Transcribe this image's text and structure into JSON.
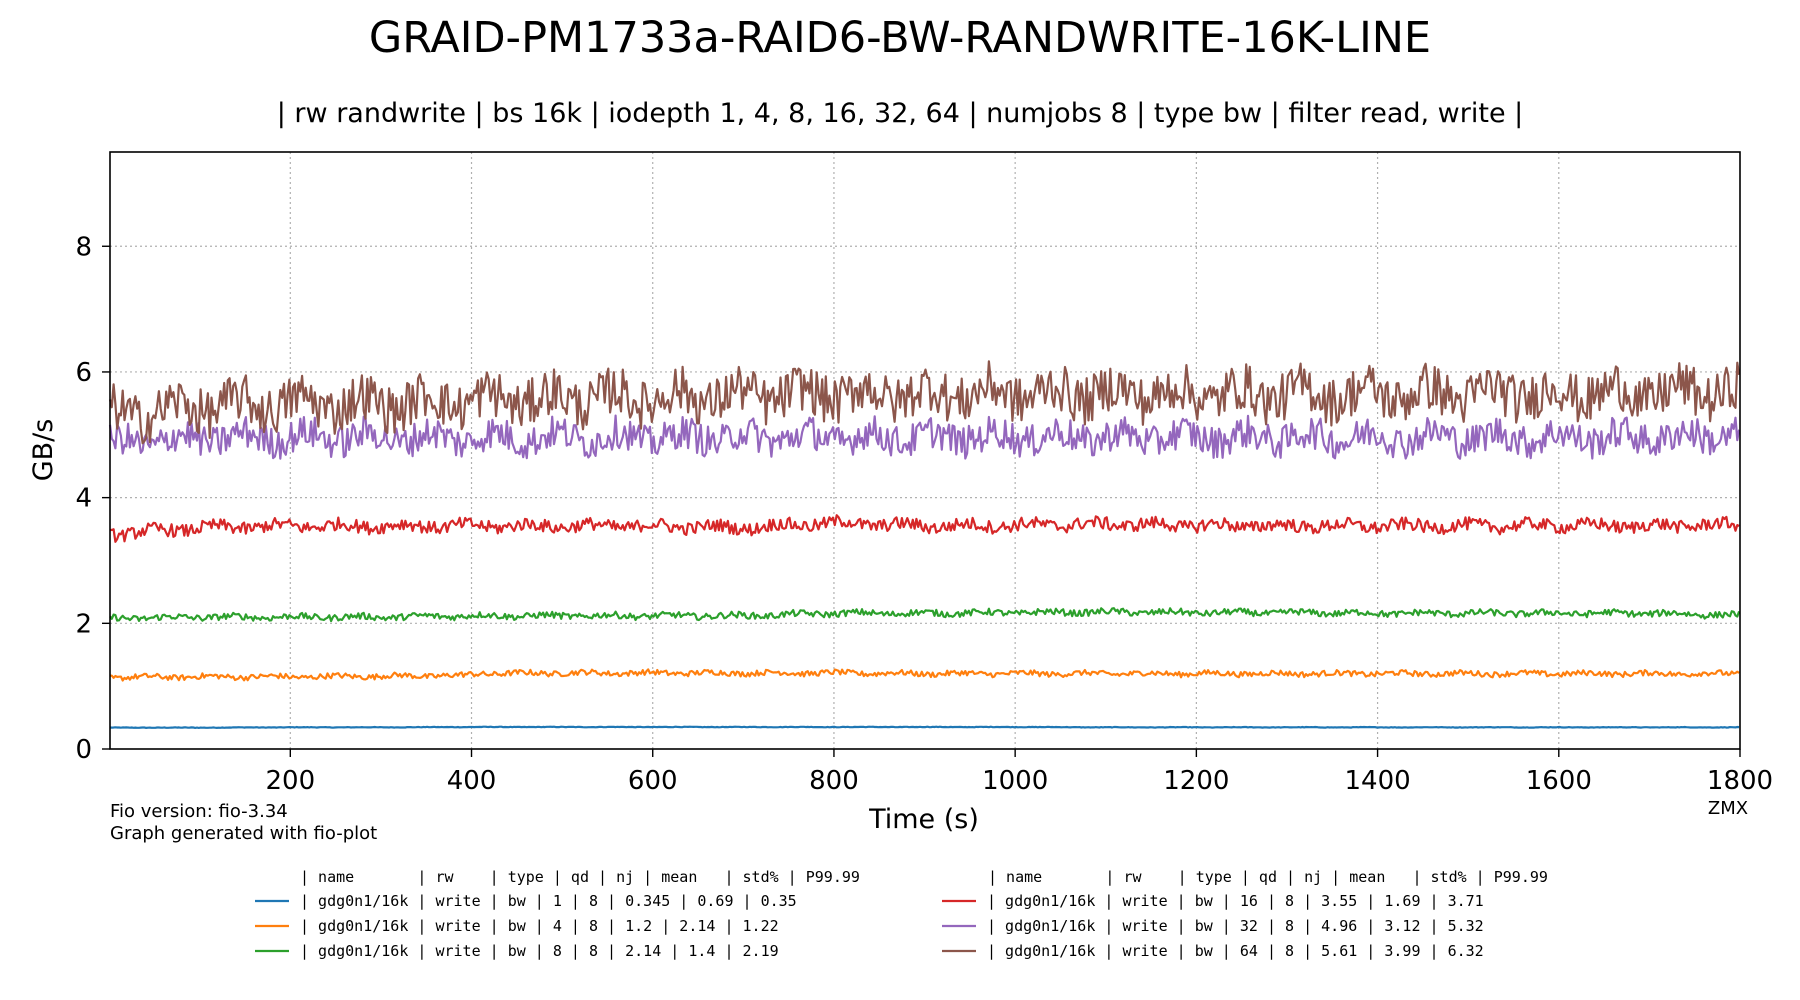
{
  "chart_data": {
    "type": "line",
    "title": "GRAID-PM1733a-RAID6-BW-RANDWRITE-16K-LINE",
    "subtitle": "| rw randwrite | bs 16k | iodepth 1, 4, 8, 16, 32, 64 | numjobs 8 | type bw | filter read, write |",
    "xlabel": "Time (s)",
    "ylabel": "GB/s",
    "xlim": [
      1,
      1800
    ],
    "ylim": [
      0,
      9.5
    ],
    "x_ticks": [
      200,
      400,
      600,
      800,
      1000,
      1200,
      1400,
      1600,
      1800
    ],
    "y_ticks": [
      0,
      2,
      4,
      6,
      8
    ],
    "grid": true,
    "legend_placement": "bottom",
    "legend_header": "| name       | rw    | type | qd | nj | mean   | std% | P99.99",
    "series": [
      {
        "qd": 1,
        "color": "#1f77b4",
        "mean": 0.345,
        "std_pct": 0.69,
        "p9999": 0.35,
        "points": [
          [
            1,
            0.34
          ],
          [
            100,
            0.34
          ],
          [
            200,
            0.345
          ],
          [
            300,
            0.345
          ],
          [
            400,
            0.35
          ],
          [
            500,
            0.35
          ],
          [
            600,
            0.35
          ],
          [
            700,
            0.35
          ],
          [
            800,
            0.35
          ],
          [
            900,
            0.35
          ],
          [
            1000,
            0.35
          ],
          [
            1100,
            0.345
          ],
          [
            1200,
            0.345
          ],
          [
            1300,
            0.345
          ],
          [
            1400,
            0.345
          ],
          [
            1500,
            0.345
          ],
          [
            1600,
            0.345
          ],
          [
            1700,
            0.345
          ],
          [
            1800,
            0.345
          ]
        ],
        "legend_row": "| gdg0n1/16k | write |   bw |  1 |  8 |  0.345 | 0.69 | 0.35"
      },
      {
        "qd": 4,
        "color": "#ff7f0e",
        "mean": 1.2,
        "std_pct": 2.14,
        "p9999": 1.22,
        "points": [
          [
            1,
            1.14
          ],
          [
            100,
            1.15
          ],
          [
            200,
            1.15
          ],
          [
            300,
            1.16
          ],
          [
            390,
            1.17
          ],
          [
            410,
            1.2
          ],
          [
            500,
            1.21
          ],
          [
            600,
            1.21
          ],
          [
            700,
            1.21
          ],
          [
            800,
            1.21
          ],
          [
            900,
            1.2
          ],
          [
            1000,
            1.2
          ],
          [
            1100,
            1.2
          ],
          [
            1200,
            1.2
          ],
          [
            1300,
            1.2
          ],
          [
            1400,
            1.2
          ],
          [
            1500,
            1.2
          ],
          [
            1600,
            1.2
          ],
          [
            1700,
            1.2
          ],
          [
            1800,
            1.2
          ]
        ],
        "legend_row": "| gdg0n1/16k | write |   bw |  4 |  8 |    1.2 | 2.14 | 1.22"
      },
      {
        "qd": 8,
        "color": "#2ca02c",
        "mean": 2.14,
        "std_pct": 1.4,
        "p9999": 2.19,
        "points": [
          [
            1,
            2.08
          ],
          [
            100,
            2.1
          ],
          [
            200,
            2.1
          ],
          [
            300,
            2.1
          ],
          [
            400,
            2.12
          ],
          [
            500,
            2.12
          ],
          [
            600,
            2.12
          ],
          [
            700,
            2.12
          ],
          [
            800,
            2.16
          ],
          [
            900,
            2.16
          ],
          [
            1000,
            2.17
          ],
          [
            1100,
            2.18
          ],
          [
            1200,
            2.17
          ],
          [
            1300,
            2.17
          ],
          [
            1400,
            2.16
          ],
          [
            1500,
            2.16
          ],
          [
            1600,
            2.16
          ],
          [
            1700,
            2.16
          ],
          [
            1800,
            2.13
          ]
        ],
        "legend_row": "| gdg0n1/16k | write |   bw |  8 |  8 |   2.14 |  1.4 | 2.19"
      },
      {
        "qd": 16,
        "color": "#d62728",
        "mean": 3.55,
        "std_pct": 1.69,
        "p9999": 3.71,
        "points": [
          [
            1,
            3.42
          ],
          [
            100,
            3.52
          ],
          [
            200,
            3.55
          ],
          [
            300,
            3.55
          ],
          [
            400,
            3.55
          ],
          [
            500,
            3.55
          ],
          [
            600,
            3.55
          ],
          [
            700,
            3.52
          ],
          [
            800,
            3.6
          ],
          [
            900,
            3.55
          ],
          [
            1000,
            3.56
          ],
          [
            1100,
            3.58
          ],
          [
            1200,
            3.56
          ],
          [
            1300,
            3.55
          ],
          [
            1400,
            3.55
          ],
          [
            1500,
            3.55
          ],
          [
            1600,
            3.56
          ],
          [
            1700,
            3.55
          ],
          [
            1800,
            3.57
          ]
        ],
        "legend_row": "| gdg0n1/16k | write |   bw | 16 |  8 |   3.55 | 1.69 | 3.71"
      },
      {
        "qd": 32,
        "color": "#9467bd",
        "mean": 4.96,
        "std_pct": 3.12,
        "p9999": 5.32,
        "points": [
          [
            1,
            4.85
          ],
          [
            100,
            4.95
          ],
          [
            200,
            4.96
          ],
          [
            300,
            4.96
          ],
          [
            400,
            4.95
          ],
          [
            500,
            4.96
          ],
          [
            600,
            4.96
          ],
          [
            700,
            4.96
          ],
          [
            800,
            4.96
          ],
          [
            900,
            4.96
          ],
          [
            1000,
            4.97
          ],
          [
            1100,
            4.96
          ],
          [
            1200,
            4.96
          ],
          [
            1300,
            4.96
          ],
          [
            1400,
            4.96
          ],
          [
            1500,
            4.96
          ],
          [
            1600,
            4.96
          ],
          [
            1700,
            4.96
          ],
          [
            1800,
            5.0
          ]
        ],
        "legend_row": "| gdg0n1/16k | write |   bw | 32 |  8 |   4.96 | 3.12 | 5.32"
      },
      {
        "qd": 64,
        "color": "#8c564b",
        "mean": 5.61,
        "std_pct": 3.99,
        "p9999": 6.32,
        "points": [
          [
            1,
            5.3
          ],
          [
            100,
            5.45
          ],
          [
            200,
            5.5
          ],
          [
            300,
            5.5
          ],
          [
            400,
            5.55
          ],
          [
            500,
            5.58
          ],
          [
            600,
            5.6
          ],
          [
            700,
            5.62
          ],
          [
            800,
            5.65
          ],
          [
            900,
            5.65
          ],
          [
            1000,
            5.66
          ],
          [
            1100,
            5.66
          ],
          [
            1200,
            5.65
          ],
          [
            1300,
            5.65
          ],
          [
            1400,
            5.65
          ],
          [
            1500,
            5.65
          ],
          [
            1600,
            5.66
          ],
          [
            1700,
            5.66
          ],
          [
            1800,
            5.7
          ]
        ],
        "legend_row": "| gdg0n1/16k | write |   bw | 64 |  8 |   5.61 | 3.99 | 6.32"
      }
    ]
  },
  "footer": {
    "fio_version": "Fio version: fio-3.34",
    "generated_with": "Graph generated with fio-plot",
    "signature": "ZMX"
  }
}
